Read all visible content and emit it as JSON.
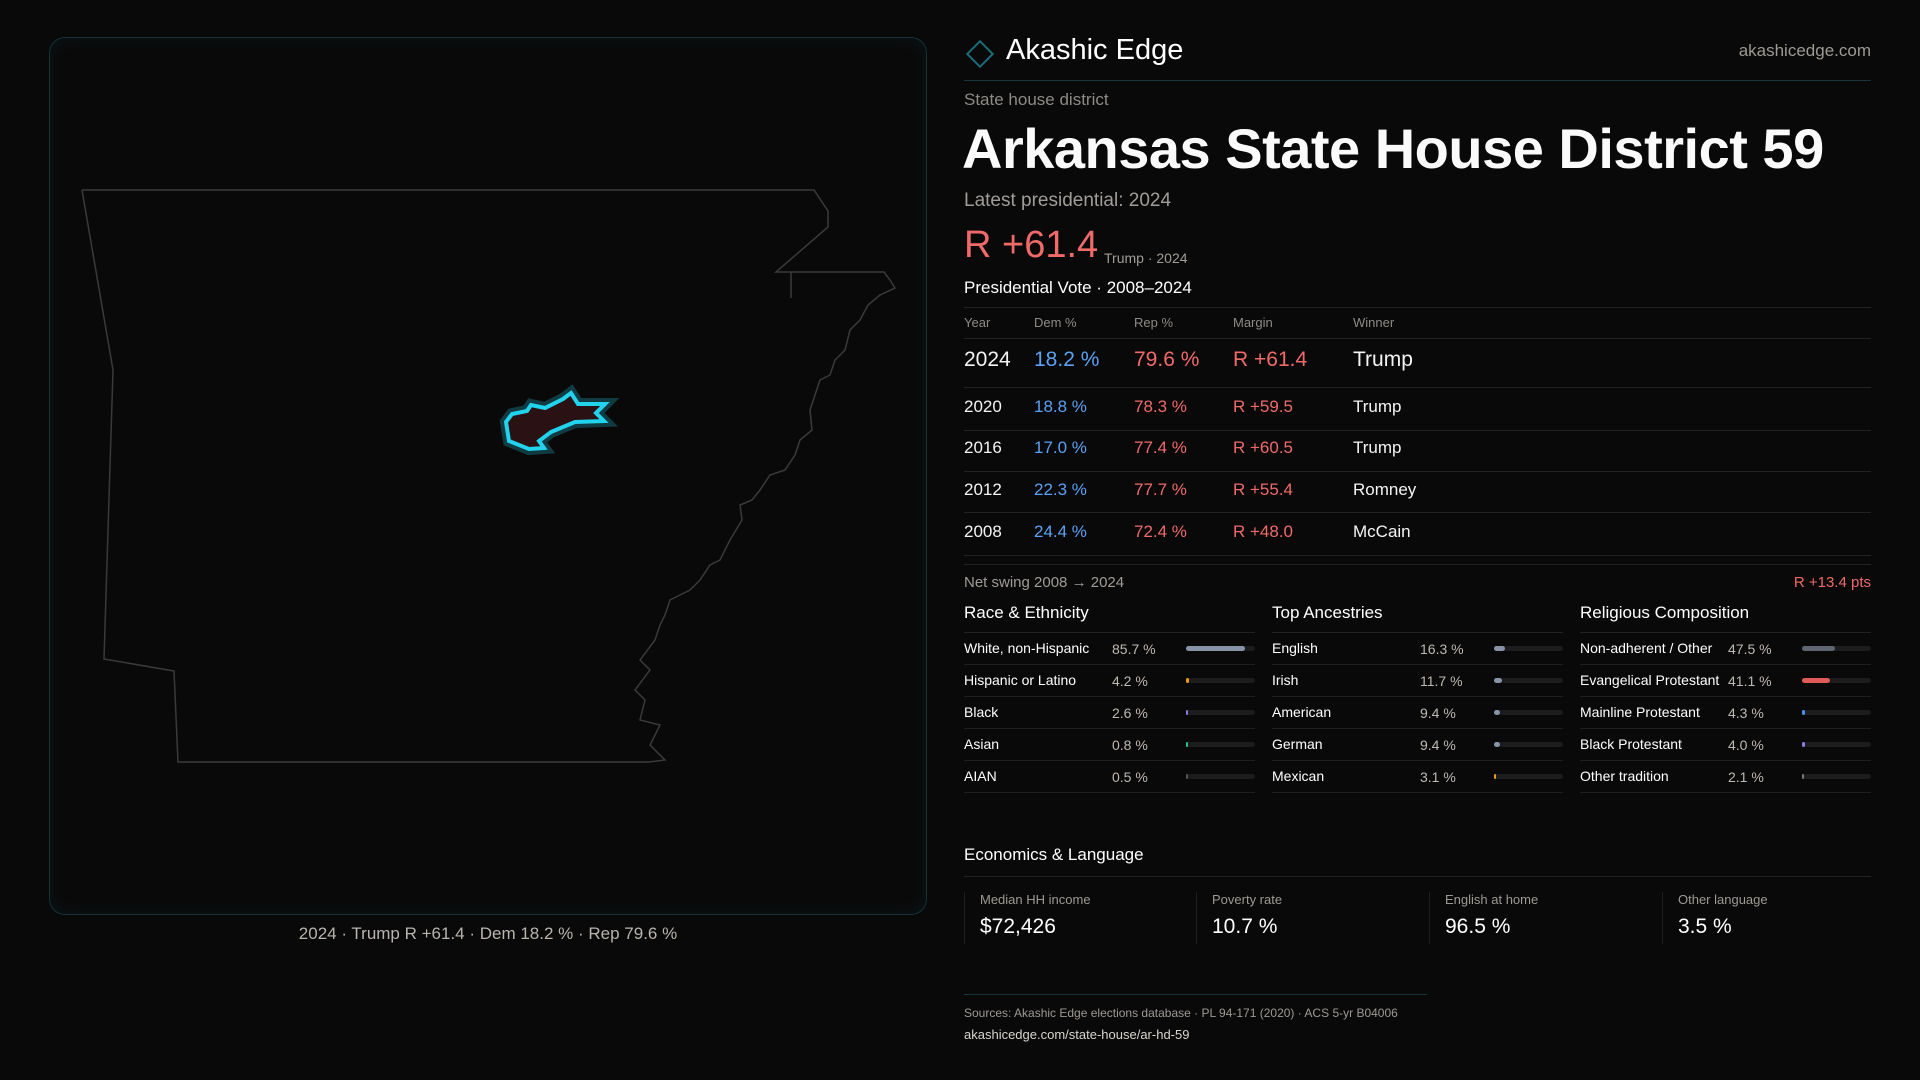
{
  "map": {
    "caption": "2024 · Trump R +61.4 · Dem 18.2 % · Rep 79.6 %",
    "highlight_color": "#22d3ee"
  },
  "header": {
    "brand": "Akashic Edge",
    "site": "akashicedge.com",
    "logo_icon": "diamond-icon"
  },
  "kicker": "State house district",
  "title": "Arkansas State House District 59",
  "latest": "Latest presidential: 2024",
  "margin": {
    "value": "R +61.4",
    "sub": "Trump · 2024"
  },
  "votes": {
    "title": "Presidential Vote · 2008–2024",
    "headers": [
      "Year",
      "Dem %",
      "Rep %",
      "Margin",
      "Winner"
    ],
    "rows": [
      [
        "2024",
        "18.2 %",
        "79.6 %",
        "R +61.4",
        "Trump"
      ],
      [
        "2020",
        "18.8 %",
        "78.3 %",
        "R +59.5",
        "Trump"
      ],
      [
        "2016",
        "17.0 %",
        "77.4 %",
        "R +60.5",
        "Trump"
      ],
      [
        "2012",
        "22.3 %",
        "77.7 %",
        "R +55.4",
        "Romney"
      ],
      [
        "2008",
        "24.4 %",
        "72.4 %",
        "R +48.0",
        "McCain"
      ]
    ]
  },
  "swing": {
    "label": "Net swing 2008 → 2024",
    "value": "R +13.4 pts"
  },
  "sections": [
    {
      "title": "Race & Ethnicity",
      "items": [
        {
          "label": "White, non-Hispanic",
          "value": "85.7 %",
          "pct": 85.7,
          "color": "#8794a8"
        },
        {
          "label": "Hispanic or Latino",
          "value": "4.2 %",
          "pct": 4.2,
          "color": "#e59a1a"
        },
        {
          "label": "Black",
          "value": "2.6 %",
          "pct": 2.6,
          "color": "#8b7ae0"
        },
        {
          "label": "Asian",
          "value": "0.8 %",
          "pct": 0.8,
          "color": "#2fbf8a"
        },
        {
          "label": "AIAN",
          "value": "0.5 %",
          "pct": 0.5,
          "color": "#555"
        }
      ]
    },
    {
      "title": "Top Ancestries",
      "items": [
        {
          "label": "English",
          "value": "16.3 %",
          "pct": 16.3,
          "color": "#8794a8"
        },
        {
          "label": "Irish",
          "value": "11.7 %",
          "pct": 11.7,
          "color": "#8794a8"
        },
        {
          "label": "American",
          "value": "9.4 %",
          "pct": 9.4,
          "color": "#8794a8"
        },
        {
          "label": "German",
          "value": "9.4 %",
          "pct": 9.4,
          "color": "#8794a8"
        },
        {
          "label": "Mexican",
          "value": "3.1 %",
          "pct": 3.1,
          "color": "#e59a1a"
        }
      ]
    },
    {
      "title": "Religious Composition",
      "items": [
        {
          "label": "Non-adherent / Other",
          "value": "47.5 %",
          "pct": 47.5,
          "color": "#5f6572"
        },
        {
          "label": "Evangelical Protestant",
          "value": "41.1 %",
          "pct": 41.1,
          "color": "#e05a5a"
        },
        {
          "label": "Mainline Protestant",
          "value": "4.3 %",
          "pct": 4.3,
          "color": "#4f8ef0"
        },
        {
          "label": "Black Protestant",
          "value": "4.0 %",
          "pct": 4.0,
          "color": "#8b7ae0"
        },
        {
          "label": "Other tradition",
          "value": "2.1 %",
          "pct": 2.1,
          "color": "#777"
        }
      ]
    }
  ],
  "economics": {
    "title": "Economics & Language",
    "cards": [
      {
        "label": "Median HH income",
        "value": "$72,426"
      },
      {
        "label": "Poverty rate",
        "value": "10.7 %"
      },
      {
        "label": "English at home",
        "value": "96.5 %"
      },
      {
        "label": "Other language",
        "value": "3.5 %"
      }
    ]
  },
  "footer": {
    "sources": "Sources: Akashic Edge elections database · PL 94-171 (2020) · ACS 5-yr B04006",
    "url": "akashicedge.com/state-house/ar-hd-59"
  }
}
